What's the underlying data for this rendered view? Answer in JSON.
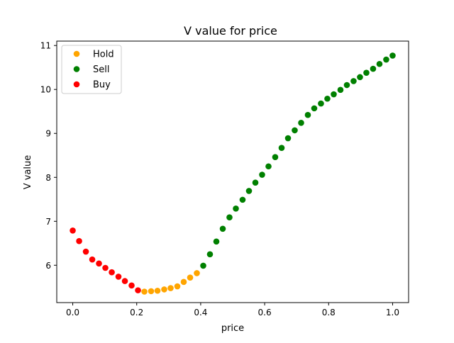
{
  "chart_data": {
    "type": "scatter",
    "title": "V value for price",
    "xlabel": "price",
    "ylabel": "V value",
    "xlim": [
      -0.05,
      1.05
    ],
    "ylim": [
      5.15,
      11.1
    ],
    "xticks": [
      0.0,
      0.2,
      0.4,
      0.6,
      0.8,
      1.0
    ],
    "xtick_labels": [
      "0.0",
      "0.2",
      "0.4",
      "0.6",
      "0.8",
      "1.0"
    ],
    "yticks": [
      6,
      7,
      8,
      9,
      10,
      11
    ],
    "ytick_labels": [
      "6",
      "7",
      "8",
      "9",
      "10",
      "11"
    ],
    "grid": false,
    "legend_position": "top-left",
    "series": [
      {
        "name": "Hold",
        "color": "#FFA500",
        "x": [
          0.224,
          0.245,
          0.265,
          0.286,
          0.306,
          0.327,
          0.347,
          0.367,
          0.388
        ],
        "y": [
          5.4,
          5.41,
          5.42,
          5.45,
          5.48,
          5.52,
          5.62,
          5.72,
          5.82
        ]
      },
      {
        "name": "Sell",
        "color": "#008000",
        "x": [
          0.408,
          0.429,
          0.449,
          0.469,
          0.49,
          0.51,
          0.531,
          0.551,
          0.571,
          0.592,
          0.612,
          0.633,
          0.653,
          0.673,
          0.694,
          0.714,
          0.735,
          0.755,
          0.776,
          0.796,
          0.816,
          0.837,
          0.857,
          0.878,
          0.898,
          0.918,
          0.939,
          0.959,
          0.98,
          1.0
        ],
        "y": [
          5.99,
          6.25,
          6.54,
          6.83,
          7.09,
          7.29,
          7.49,
          7.69,
          7.88,
          8.06,
          8.25,
          8.46,
          8.67,
          8.89,
          9.07,
          9.24,
          9.42,
          9.57,
          9.68,
          9.79,
          9.89,
          9.99,
          10.1,
          10.19,
          10.28,
          10.38,
          10.47,
          10.58,
          10.68,
          10.77
        ]
      },
      {
        "name": "Buy",
        "color": "#FF0000",
        "x": [
          0.0,
          0.02,
          0.041,
          0.061,
          0.082,
          0.102,
          0.122,
          0.143,
          0.163,
          0.184,
          0.204
        ],
        "y": [
          6.79,
          6.55,
          6.31,
          6.13,
          6.04,
          5.94,
          5.84,
          5.74,
          5.64,
          5.54,
          5.43
        ]
      }
    ]
  }
}
